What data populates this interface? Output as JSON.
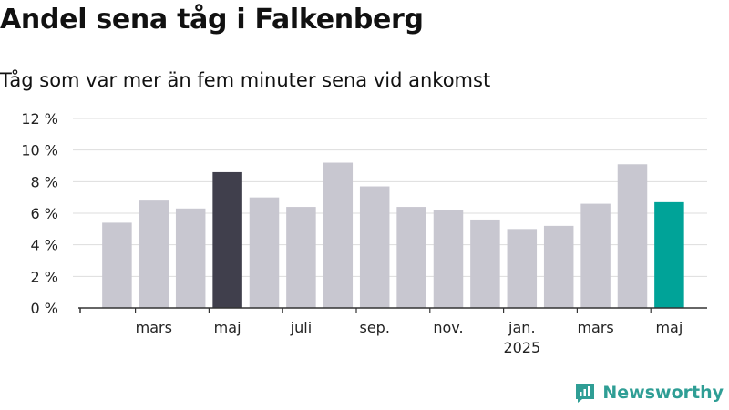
{
  "header": {
    "title": "Andel sena tåg i Falkenberg",
    "subtitle": "Tåg som var mer än fem minuter sena vid ankomst"
  },
  "brand": {
    "name": "Newsworthy",
    "icon": "newsworthy-logo-icon",
    "color": "#2f9e95"
  },
  "colors": {
    "default": "#c8c7d0",
    "highlight_past": "#403f4c",
    "highlight_latest": "#00a398"
  },
  "chart_data": {
    "type": "bar",
    "title": "Andel sena tåg i Falkenberg",
    "subtitle": "Tåg som var mer än fem minuter sena vid ankomst",
    "xlabel": "",
    "ylabel": "",
    "ylim": [
      0,
      12
    ],
    "yticks": [
      {
        "value": 0,
        "label": "0 %"
      },
      {
        "value": 2,
        "label": "2 %"
      },
      {
        "value": 4,
        "label": "4 %"
      },
      {
        "value": 6,
        "label": "6 %"
      },
      {
        "value": 8,
        "label": "8 %"
      },
      {
        "value": 10,
        "label": "10 %"
      },
      {
        "value": 12,
        "label": "12 %"
      }
    ],
    "grid": true,
    "legend": "none",
    "categories": [
      "2024-02",
      "2024-03",
      "2024-04",
      "2024-05",
      "2024-06",
      "2024-07",
      "2024-08",
      "2024-09",
      "2024-10",
      "2024-11",
      "2024-12",
      "2025-01",
      "2025-02",
      "2025-03",
      "2025-04",
      "2025-05"
    ],
    "values": [
      5.4,
      6.8,
      6.3,
      8.6,
      7.0,
      6.4,
      9.2,
      7.7,
      6.4,
      6.2,
      5.6,
      5.0,
      5.2,
      6.6,
      9.1,
      6.7
    ],
    "highlight": {
      "2024-05": "highlight_past",
      "2025-05": "highlight_latest"
    },
    "xticks": [
      {
        "category": "2024-03",
        "label": "mars",
        "sub": ""
      },
      {
        "category": "2024-05",
        "label": "maj",
        "sub": ""
      },
      {
        "category": "2024-07",
        "label": "juli",
        "sub": ""
      },
      {
        "category": "2024-09",
        "label": "sep.",
        "sub": ""
      },
      {
        "category": "2024-11",
        "label": "nov.",
        "sub": ""
      },
      {
        "category": "2025-01",
        "label": "jan.",
        "sub": "2025"
      },
      {
        "category": "2025-03",
        "label": "mars",
        "sub": ""
      },
      {
        "category": "2025-05",
        "label": "maj",
        "sub": ""
      }
    ]
  }
}
